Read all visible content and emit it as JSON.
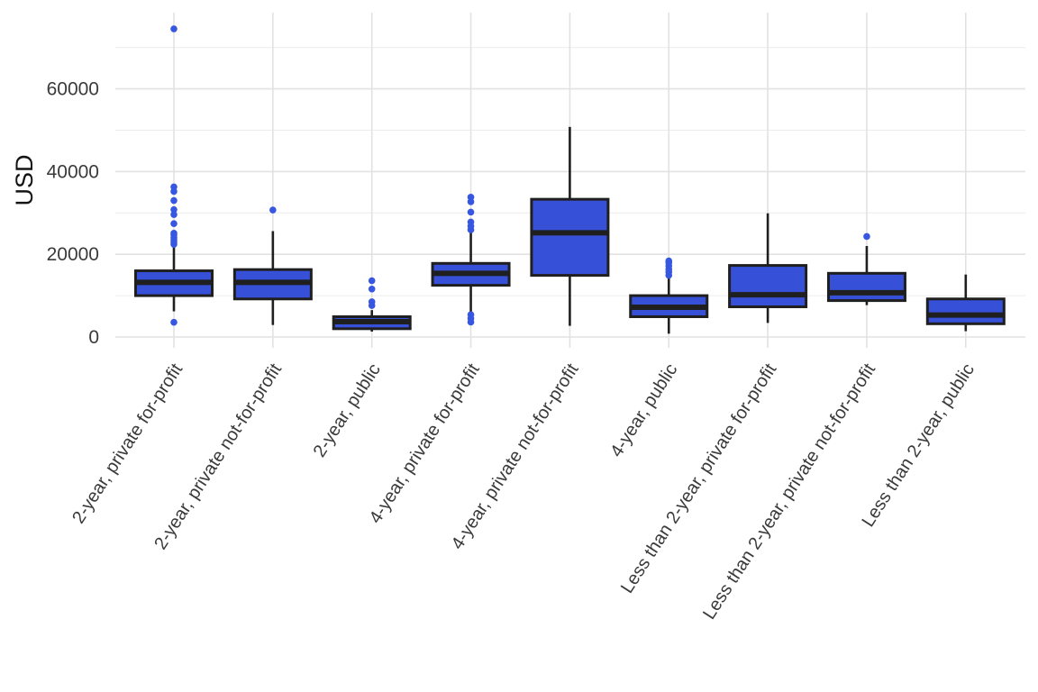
{
  "chart_data": {
    "type": "boxplot",
    "title": "",
    "xlabel": "",
    "ylabel": "USD",
    "legend": "none",
    "grid": true,
    "background": "#ffffff",
    "colors": {
      "box_fill": "#3750D8",
      "box_stroke": "#1F1F1F",
      "outlier": "#3857E1",
      "grid_major": "#E2E2E2",
      "grid_minor": "#ECECEC",
      "tick_text": "#3a3a3a",
      "axis_title_text": "#141414"
    },
    "ylim": [
      0,
      76000
    ],
    "y_ticks": [
      0,
      20000,
      40000,
      60000
    ],
    "y_minor_ticks": [
      10000,
      30000,
      50000,
      70000
    ],
    "categories": [
      "2-year, private for-profit",
      "2-year, private not-for-profit",
      "2-year, public",
      "4-year, private for-profit",
      "4-year, private not-for-profit",
      "4-year, public",
      "Less than 2-year, private for-profit",
      "Less than 2-year, private not-for-profit",
      "Less than 2-year, public"
    ],
    "series": [
      {
        "category": "2-year, private for-profit",
        "whisker_low": 6200,
        "q1": 10000,
        "median": 13200,
        "q3": 16000,
        "whisker_high": 21900,
        "outliers": [
          3550,
          22400,
          22900,
          23400,
          24000,
          24700,
          25100,
          27400,
          29600,
          30800,
          33000,
          35200,
          36300,
          74500
        ]
      },
      {
        "category": "2-year, private not-for-profit",
        "whisker_low": 2900,
        "q1": 9200,
        "median": 13200,
        "q3": 16300,
        "whisker_high": 25600,
        "outliers": [
          30700
        ]
      },
      {
        "category": "2-year, public",
        "whisker_low": 1300,
        "q1": 2000,
        "median": 3700,
        "q3": 4900,
        "whisker_high": 6500,
        "outliers": [
          7600,
          8500,
          11600,
          13600
        ]
      },
      {
        "category": "4-year, private for-profit",
        "whisker_low": 5950,
        "q1": 12500,
        "median": 15400,
        "q3": 17800,
        "whisker_high": 25200,
        "outliers": [
          3600,
          4500,
          5400,
          25900,
          26800,
          27800,
          30200,
          32700,
          33800
        ]
      },
      {
        "category": "4-year, private not-for-profit",
        "whisker_low": 2700,
        "q1": 14900,
        "median": 25200,
        "q3": 33300,
        "whisker_high": 50800,
        "outliers": []
      },
      {
        "category": "4-year, public",
        "whisker_low": 800,
        "q1": 4900,
        "median": 7200,
        "q3": 10000,
        "whisker_high": 14300,
        "outliers": [
          14900,
          15700,
          16400,
          17200,
          18000,
          18400
        ]
      },
      {
        "category": "Less than 2-year, private for-profit",
        "whisker_low": 3400,
        "q1": 7300,
        "median": 10200,
        "q3": 17300,
        "whisker_high": 29900,
        "outliers": []
      },
      {
        "category": "Less than 2-year, private not-for-profit",
        "whisker_low": 7700,
        "q1": 8800,
        "median": 10700,
        "q3": 15400,
        "whisker_high": 22000,
        "outliers": [
          24300
        ]
      },
      {
        "category": "Less than 2-year, public",
        "whisker_low": 1400,
        "q1": 3200,
        "median": 5300,
        "q3": 9200,
        "whisker_high": 15100,
        "outliers": []
      }
    ]
  }
}
